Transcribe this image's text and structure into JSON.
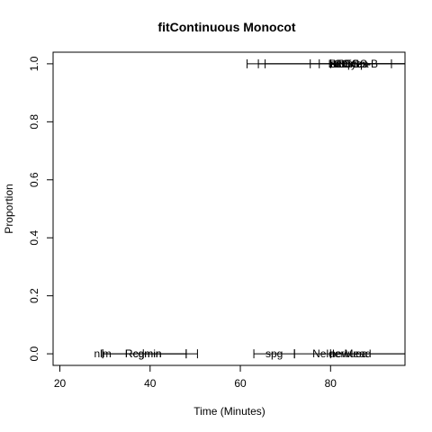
{
  "chart_data": {
    "type": "scatter",
    "title": "fitContinuous Monocot",
    "xlabel": "Time (Minutes)",
    "ylabel": "Proportion",
    "xlim": [
      18.5,
      96.5
    ],
    "ylim": [
      -0.04,
      1.04
    ],
    "xticks": [
      "20",
      "40",
      "60",
      "80"
    ],
    "xtick_values": [
      20,
      40,
      60,
      80
    ],
    "yticks": [
      "0.0",
      "0.2",
      "0.4",
      "0.6",
      "0.8",
      "1.0"
    ],
    "ytick_values": [
      0.0,
      0.2,
      0.4,
      0.6,
      0.8,
      1.0
    ],
    "grid": false,
    "legend": "none",
    "series": [
      {
        "points": [
          {
            "label": "nlm",
            "x": 29.5,
            "y": 0.0,
            "low": 29.5,
            "high": 48.0
          },
          {
            "label": "Rcgmin",
            "x": 38.5,
            "y": 0.0,
            "low": 38.5,
            "high": 48.0
          },
          {
            "label": "Rcgmin",
            "x": 38.5,
            "y": 0.0,
            "low": 29.5,
            "high": 50.5
          },
          {
            "label": "spg",
            "x": 67.5,
            "y": 0.0,
            "low": 63.0,
            "high": 72.0
          },
          {
            "label": "newuoa",
            "x": 84.0,
            "y": 0.0,
            "low": 80.0,
            "high": 96.5
          },
          {
            "label": "NelderMead",
            "x": 82.5,
            "y": 0.0,
            "low": 72.0,
            "high": 96.5
          },
          {
            "label": "L-BFGS-B",
            "x": 85.0,
            "y": 1.0,
            "low": 61.5,
            "high": 96.5
          },
          {
            "label": "bobyqa",
            "x": 84.5,
            "y": 1.0,
            "low": 64.0,
            "high": 93.5
          },
          {
            "label": "subplex",
            "x": 84.0,
            "y": 1.0,
            "low": 65.5,
            "high": 96.5
          },
          {
            "label": "nlminb",
            "x": 83.5,
            "y": 1.0,
            "low": 75.5,
            "high": 96.5
          },
          {
            "label": "BFGS",
            "x": 83.0,
            "y": 1.0,
            "low": 77.5,
            "high": 96.5
          },
          {
            "label": "CG",
            "x": 82.5,
            "y": 1.0,
            "low": 80.0,
            "high": 96.5
          }
        ]
      }
    ]
  }
}
